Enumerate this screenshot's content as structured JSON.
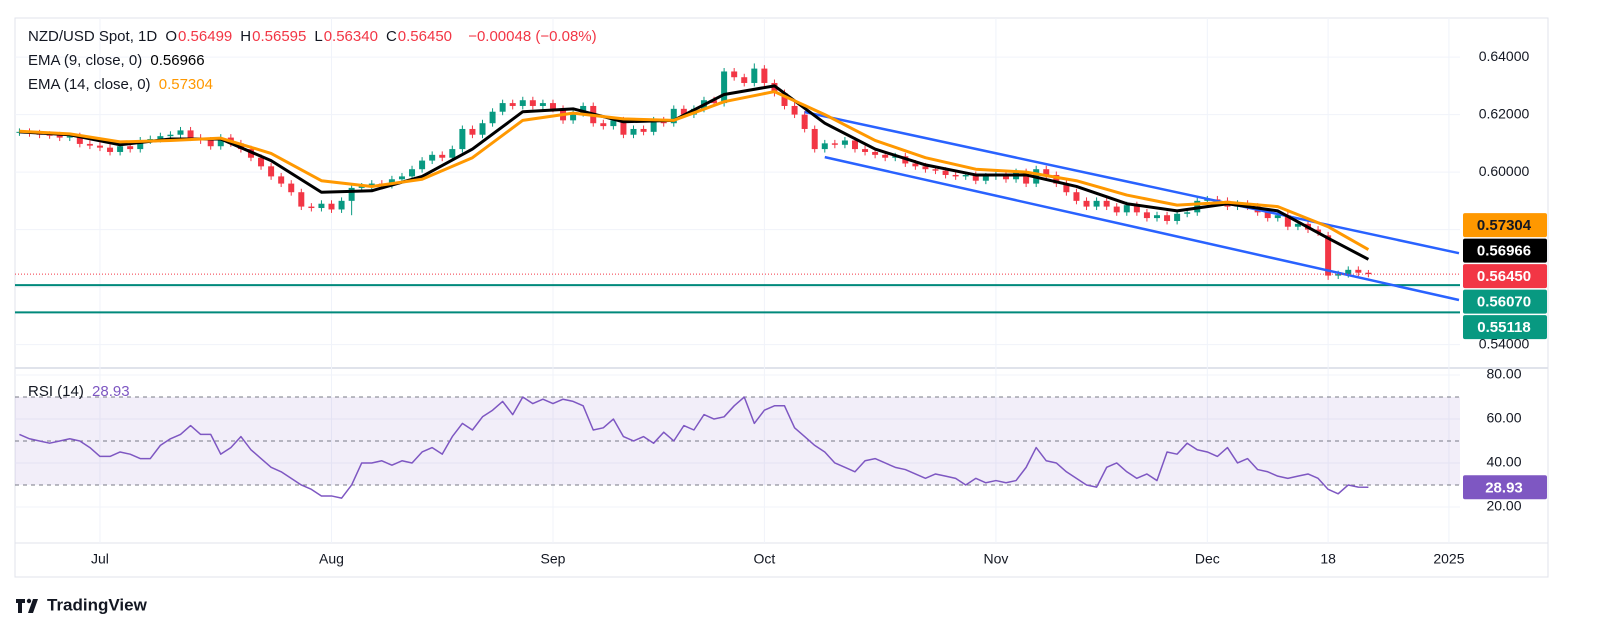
{
  "chart_data": [
    {
      "type": "candlestick",
      "title": "NZD/USD Spot, 1D",
      "ohlc_legend": [
        {
          "key": "O",
          "label": "0.56499"
        },
        {
          "key": "H",
          "label": "0.56595"
        },
        {
          "key": "L",
          "label": "0.56340"
        },
        {
          "key": "C",
          "label": "0.56450"
        }
      ],
      "change_label": "−0.00048 (−0.08%)",
      "up_color": "#089981",
      "down_color": "#f23645",
      "open": [
        0.6138,
        0.614,
        0.6135,
        0.613,
        0.6128,
        0.612,
        0.6125,
        0.6098,
        0.6092,
        0.6085,
        0.607,
        0.609,
        0.608,
        0.611,
        0.6115,
        0.6125,
        0.613,
        0.6145,
        0.612,
        0.611,
        0.609,
        0.612,
        0.61,
        0.608,
        0.605,
        0.602,
        0.5985,
        0.596,
        0.593,
        0.588,
        0.5875,
        0.589,
        0.587,
        0.59,
        0.5945,
        0.595,
        0.596,
        0.5955,
        0.5975,
        0.5985,
        0.601,
        0.604,
        0.606,
        0.605,
        0.608,
        0.615,
        0.613,
        0.617,
        0.621,
        0.624,
        0.623,
        0.625,
        0.623,
        0.624,
        0.622,
        0.618,
        0.6205,
        0.623,
        0.617,
        0.616,
        0.618,
        0.613,
        0.615,
        0.614,
        0.618,
        0.617,
        0.622,
        0.62,
        0.622,
        0.625,
        0.624,
        0.635,
        0.633,
        0.631,
        0.636,
        0.631,
        0.6275,
        0.623,
        0.62,
        0.615,
        0.608,
        0.61,
        0.6095,
        0.611,
        0.608,
        0.607,
        0.606,
        0.605,
        0.6055,
        0.603,
        0.602,
        0.601,
        0.6005,
        0.599,
        0.5985,
        0.599,
        0.597,
        0.5985,
        0.5995,
        0.5975,
        0.6,
        0.596,
        0.601,
        0.599,
        0.596,
        0.593,
        0.59,
        0.588,
        0.59,
        0.588,
        0.586,
        0.5885,
        0.586,
        0.584,
        0.585,
        0.583,
        0.5855,
        0.586,
        0.59,
        0.5905,
        0.59,
        0.588,
        0.589,
        0.588,
        0.586,
        0.584,
        0.585,
        0.581,
        0.582,
        0.58,
        0.578,
        0.564,
        0.5645,
        0.566,
        0.56499
      ],
      "high": [
        0.6152,
        0.6152,
        0.6147,
        0.6142,
        0.614,
        0.6137,
        0.6137,
        0.611,
        0.6104,
        0.6097,
        0.6102,
        0.6102,
        0.6122,
        0.6127,
        0.6137,
        0.6142,
        0.6157,
        0.6157,
        0.6132,
        0.6122,
        0.6132,
        0.6132,
        0.6112,
        0.6092,
        0.6062,
        0.6032,
        0.5997,
        0.5972,
        0.5942,
        0.5892,
        0.5902,
        0.5902,
        0.5912,
        0.5957,
        0.5962,
        0.5972,
        0.5972,
        0.5987,
        0.5997,
        0.6022,
        0.6052,
        0.6072,
        0.6072,
        0.6092,
        0.6162,
        0.6162,
        0.6182,
        0.6222,
        0.6252,
        0.6252,
        0.6262,
        0.6262,
        0.6252,
        0.6252,
        0.6232,
        0.6217,
        0.6242,
        0.6242,
        0.6182,
        0.6192,
        0.6192,
        0.6162,
        0.6162,
        0.6192,
        0.6192,
        0.6232,
        0.6232,
        0.6232,
        0.6262,
        0.6262,
        0.6362,
        0.6362,
        0.6342,
        0.6378,
        0.6372,
        0.6322,
        0.6287,
        0.6242,
        0.6212,
        0.6162,
        0.6112,
        0.6112,
        0.6122,
        0.6122,
        0.6092,
        0.6082,
        0.6072,
        0.6067,
        0.6067,
        0.6042,
        0.6032,
        0.6022,
        0.6017,
        0.6002,
        0.6002,
        0.6002,
        0.5997,
        0.6007,
        0.6007,
        0.6012,
        0.6012,
        0.6022,
        0.6022,
        0.6002,
        0.5972,
        0.5942,
        0.5912,
        0.5912,
        0.5912,
        0.5892,
        0.5897,
        0.5897,
        0.5872,
        0.5862,
        0.5862,
        0.5867,
        0.5872,
        0.5912,
        0.5917,
        0.5917,
        0.5912,
        0.5902,
        0.5902,
        0.5892,
        0.5872,
        0.5862,
        0.5862,
        0.5832,
        0.5832,
        0.5812,
        0.5792,
        0.5657,
        0.5672,
        0.5672,
        0.56595
      ],
      "low": [
        0.6126,
        0.6123,
        0.6118,
        0.6116,
        0.6108,
        0.6108,
        0.6086,
        0.608,
        0.6073,
        0.6058,
        0.6058,
        0.6068,
        0.6068,
        0.6098,
        0.6103,
        0.6113,
        0.6118,
        0.6108,
        0.6098,
        0.6078,
        0.6078,
        0.6088,
        0.6068,
        0.6038,
        0.6008,
        0.5973,
        0.5948,
        0.5918,
        0.5868,
        0.5863,
        0.5863,
        0.5858,
        0.5858,
        0.585,
        0.5933,
        0.5938,
        0.5943,
        0.5943,
        0.5963,
        0.5973,
        0.5998,
        0.6028,
        0.6038,
        0.6038,
        0.6068,
        0.6118,
        0.6118,
        0.6158,
        0.6198,
        0.6218,
        0.6218,
        0.6218,
        0.6218,
        0.6208,
        0.6168,
        0.6168,
        0.6193,
        0.6158,
        0.6148,
        0.6148,
        0.6118,
        0.6118,
        0.6128,
        0.6128,
        0.6158,
        0.6158,
        0.6188,
        0.6188,
        0.6208,
        0.6228,
        0.6228,
        0.6318,
        0.6298,
        0.6298,
        0.6298,
        0.6263,
        0.6218,
        0.6188,
        0.6138,
        0.6068,
        0.6068,
        0.6083,
        0.6083,
        0.6068,
        0.6058,
        0.6048,
        0.6038,
        0.6038,
        0.6018,
        0.6008,
        0.5998,
        0.5993,
        0.5978,
        0.5973,
        0.5973,
        0.5958,
        0.5958,
        0.5973,
        0.5963,
        0.5963,
        0.5948,
        0.5948,
        0.5978,
        0.5948,
        0.5918,
        0.5888,
        0.5868,
        0.5868,
        0.5868,
        0.5848,
        0.5848,
        0.5848,
        0.5828,
        0.5828,
        0.5818,
        0.5818,
        0.5843,
        0.5848,
        0.5888,
        0.5888,
        0.5868,
        0.5868,
        0.5868,
        0.5848,
        0.5828,
        0.5828,
        0.5798,
        0.5798,
        0.5788,
        0.5778,
        0.5625,
        0.5628,
        0.5633,
        0.5638,
        0.5634
      ],
      "close": [
        0.614,
        0.6135,
        0.613,
        0.6128,
        0.612,
        0.6125,
        0.6098,
        0.6092,
        0.6085,
        0.607,
        0.609,
        0.608,
        0.611,
        0.6115,
        0.6125,
        0.613,
        0.6145,
        0.612,
        0.611,
        0.609,
        0.612,
        0.61,
        0.608,
        0.605,
        0.602,
        0.5985,
        0.596,
        0.593,
        0.588,
        0.5875,
        0.589,
        0.587,
        0.59,
        0.5945,
        0.595,
        0.596,
        0.5955,
        0.5975,
        0.5985,
        0.601,
        0.604,
        0.606,
        0.605,
        0.608,
        0.615,
        0.613,
        0.617,
        0.621,
        0.624,
        0.623,
        0.625,
        0.623,
        0.624,
        0.622,
        0.618,
        0.6205,
        0.623,
        0.617,
        0.616,
        0.618,
        0.613,
        0.615,
        0.614,
        0.618,
        0.617,
        0.622,
        0.62,
        0.622,
        0.625,
        0.624,
        0.635,
        0.633,
        0.631,
        0.636,
        0.631,
        0.6275,
        0.623,
        0.62,
        0.615,
        0.608,
        0.61,
        0.6095,
        0.611,
        0.608,
        0.607,
        0.606,
        0.605,
        0.6055,
        0.603,
        0.602,
        0.601,
        0.6005,
        0.599,
        0.5985,
        0.599,
        0.597,
        0.5985,
        0.5995,
        0.5975,
        0.6,
        0.596,
        0.601,
        0.599,
        0.596,
        0.593,
        0.59,
        0.588,
        0.59,
        0.588,
        0.586,
        0.5885,
        0.586,
        0.584,
        0.585,
        0.583,
        0.5855,
        0.586,
        0.59,
        0.5905,
        0.59,
        0.588,
        0.589,
        0.588,
        0.586,
        0.584,
        0.585,
        0.581,
        0.582,
        0.58,
        0.579,
        0.564,
        0.5645,
        0.566,
        0.565,
        0.5645
      ],
      "close_label": "0.56450",
      "series": [
        {
          "name": "EMA (9, close, 0)",
          "color": "#000000",
          "last_label": "0.56966",
          "x": [
            0,
            5,
            10,
            15,
            20,
            25,
            30,
            35,
            40,
            45,
            50,
            55,
            60,
            65,
            70,
            75,
            80,
            85,
            90,
            95,
            100,
            105,
            110,
            115,
            120,
            125,
            130,
            134
          ],
          "values": [
            0.614,
            0.613,
            0.6095,
            0.6115,
            0.6115,
            0.604,
            0.593,
            0.5935,
            0.5985,
            0.608,
            0.621,
            0.622,
            0.6175,
            0.618,
            0.627,
            0.63,
            0.617,
            0.608,
            0.6025,
            0.599,
            0.599,
            0.595,
            0.589,
            0.5865,
            0.589,
            0.5865,
            0.577,
            0.56966
          ]
        },
        {
          "name": "EMA (14, close, 0)",
          "color": "#ff9800",
          "last_label": "0.57304",
          "x": [
            0,
            5,
            10,
            15,
            20,
            25,
            30,
            35,
            40,
            45,
            50,
            55,
            60,
            65,
            70,
            75,
            80,
            85,
            90,
            95,
            100,
            105,
            110,
            115,
            120,
            125,
            130,
            134
          ],
          "values": [
            0.6142,
            0.6133,
            0.6105,
            0.611,
            0.6118,
            0.6065,
            0.597,
            0.595,
            0.5975,
            0.605,
            0.618,
            0.6205,
            0.6185,
            0.618,
            0.6245,
            0.628,
            0.62,
            0.611,
            0.605,
            0.601,
            0.6,
            0.597,
            0.592,
            0.5885,
            0.5895,
            0.588,
            0.581,
            0.57304
          ]
        }
      ],
      "trendlines": [
        {
          "color": "#2962ff",
          "x": [
            78,
            143
          ],
          "values": [
            0.6209,
            0.5718
          ]
        },
        {
          "color": "#2962ff",
          "x": [
            80,
            143
          ],
          "values": [
            0.6052,
            0.5555
          ]
        }
      ],
      "levels": [
        {
          "value": 0.5607,
          "label": "0.56070",
          "color": "#00897b"
        },
        {
          "value": 0.55118,
          "label": "0.55118",
          "color": "#00897b"
        }
      ],
      "ylim": [
        0.5322,
        0.6536
      ],
      "yticks": [
        {
          "value": 0.64,
          "label": "0.64000"
        },
        {
          "value": 0.62,
          "label": "0.62000"
        },
        {
          "value": 0.6,
          "label": "0.60000"
        },
        {
          "value": 0.54,
          "label": "0.54000"
        }
      ],
      "ygrid": [
        0.58,
        0.56
      ],
      "xlim": [
        -0.44,
        143.1
      ],
      "grid": true
    },
    {
      "type": "line",
      "series": [
        {
          "name": "RSI (14)",
          "color": "#7e57c2",
          "last_label": "28.93",
          "values": [
            53,
            51,
            50,
            49,
            50,
            51,
            50,
            47,
            43,
            43,
            45,
            44,
            42,
            42,
            48,
            51,
            53,
            57,
            53,
            53,
            44,
            47,
            52,
            46,
            42,
            38,
            36,
            33,
            30,
            28,
            25,
            25,
            24,
            30,
            40,
            40,
            41,
            39,
            41,
            40,
            45,
            47,
            44,
            52,
            58,
            55,
            61,
            64,
            68,
            62,
            70,
            67,
            69,
            67,
            69,
            68,
            66,
            55,
            56,
            60,
            52,
            50,
            52,
            49,
            54,
            50,
            57,
            55,
            62,
            60,
            61,
            66,
            70,
            58,
            64,
            66,
            66,
            56,
            52,
            48,
            45,
            40,
            38,
            36,
            41,
            42,
            40,
            38,
            37,
            35,
            33,
            35,
            34,
            33,
            30,
            33,
            31,
            32,
            31,
            32,
            38,
            47,
            41,
            40,
            36,
            33,
            30,
            29,
            38,
            40,
            36,
            33,
            35,
            32,
            45,
            44,
            49,
            46,
            45,
            43,
            47,
            40,
            42,
            37,
            36,
            34,
            33,
            34,
            35,
            33,
            28,
            26,
            30,
            29,
            28.93
          ]
        }
      ],
      "band": [
        30,
        70
      ],
      "dashed_levels": [
        70,
        50,
        30
      ],
      "ylim": [
        3.6,
        83.2
      ],
      "yticks": [
        {
          "value": 80,
          "label": "80.00"
        },
        {
          "value": 60,
          "label": "60.00"
        },
        {
          "value": 40,
          "label": "40.00"
        },
        {
          "value": 20,
          "label": "20.00"
        }
      ],
      "xlim": [
        -0.44,
        143.1
      ],
      "xticks": [
        {
          "value": 8,
          "label": "Jul"
        },
        {
          "value": 31,
          "label": "Aug"
        },
        {
          "value": 53,
          "label": "Sep"
        },
        {
          "value": 74,
          "label": "Oct"
        },
        {
          "value": 97,
          "label": "Nov"
        },
        {
          "value": 118,
          "label": "Dec"
        },
        {
          "value": 130,
          "label": "18"
        },
        {
          "value": 142,
          "label": "2025"
        }
      ],
      "grid": true
    }
  ],
  "footer": {
    "brand": "TradingView"
  }
}
